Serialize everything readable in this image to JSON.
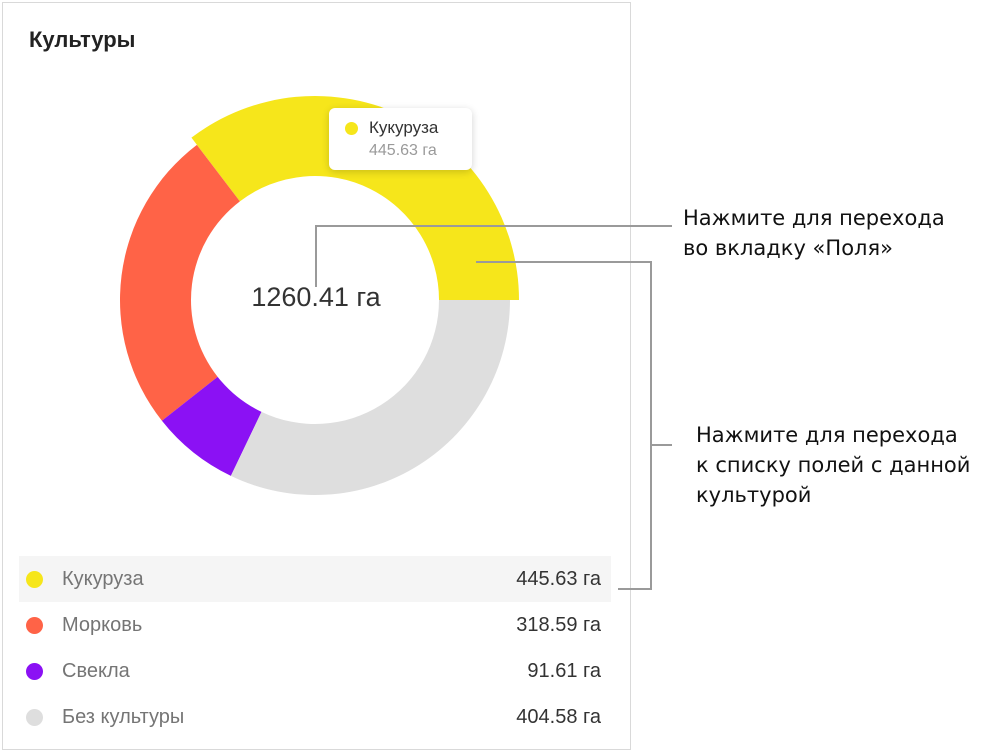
{
  "card": {
    "title": "Культуры",
    "total_label": "1260.41 га"
  },
  "tooltip": {
    "name": "Кукуруза",
    "value": "445.63 га",
    "color": "#f6e61b"
  },
  "chart_data": {
    "type": "pie",
    "categories": [
      "Кукуруза",
      "Морковь",
      "Свекла",
      "Без культуры"
    ],
    "values": [
      445.63,
      318.59,
      91.61,
      404.58
    ],
    "colors": [
      "#f6e61b",
      "#ff6347",
      "#8b11f4",
      "#dedede"
    ],
    "highlighted_index": 0,
    "title": "Культуры"
  },
  "legend": [
    {
      "name": "Кукуруза",
      "value": "445.63 га",
      "color": "#f6e61b"
    },
    {
      "name": "Морковь",
      "value": "318.59 га",
      "color": "#ff6347"
    },
    {
      "name": "Свекла",
      "value": "91.61 га",
      "color": "#8b11f4"
    },
    {
      "name": "Без культуры",
      "value": "404.58 га",
      "color": "#dedede"
    }
  ],
  "annotations": {
    "center": {
      "line1": "Нажмите для перехода",
      "line2": "во вкладку «Поля»"
    },
    "list": {
      "line1": "Нажмите для перехода",
      "line2": "к списку полей с данной",
      "line3": "культурой"
    }
  }
}
